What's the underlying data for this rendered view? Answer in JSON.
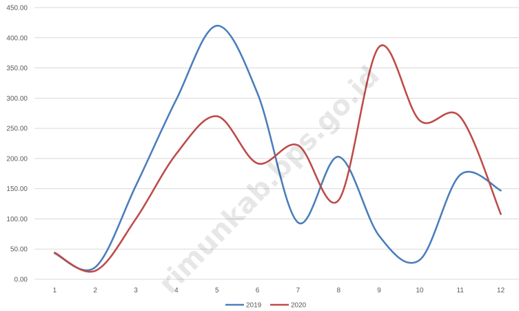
{
  "chart_data": {
    "type": "line",
    "categories": [
      "1",
      "2",
      "3",
      "4",
      "5",
      "6",
      "7",
      "8",
      "9",
      "10",
      "11",
      "12"
    ],
    "series": [
      {
        "name": "2019",
        "color": "#4A7EBB",
        "values": [
          43,
          20,
          155,
          298,
          420,
          308,
          94,
          203,
          72,
          32,
          173,
          147
        ]
      },
      {
        "name": "2020",
        "color": "#BE4B48",
        "values": [
          44,
          14,
          100,
          208,
          270,
          192,
          222,
          131,
          385,
          263,
          269,
          108
        ]
      }
    ],
    "y_ticks": [
      "0.00",
      "50.00",
      "100.00",
      "150.00",
      "200.00",
      "250.00",
      "300.00",
      "350.00",
      "400.00",
      "450.00"
    ],
    "ylim": [
      0,
      450
    ],
    "grid": true,
    "legend_position": "bottom-center",
    "smooth": true,
    "watermark": "rimunkab.bps.go.id"
  }
}
